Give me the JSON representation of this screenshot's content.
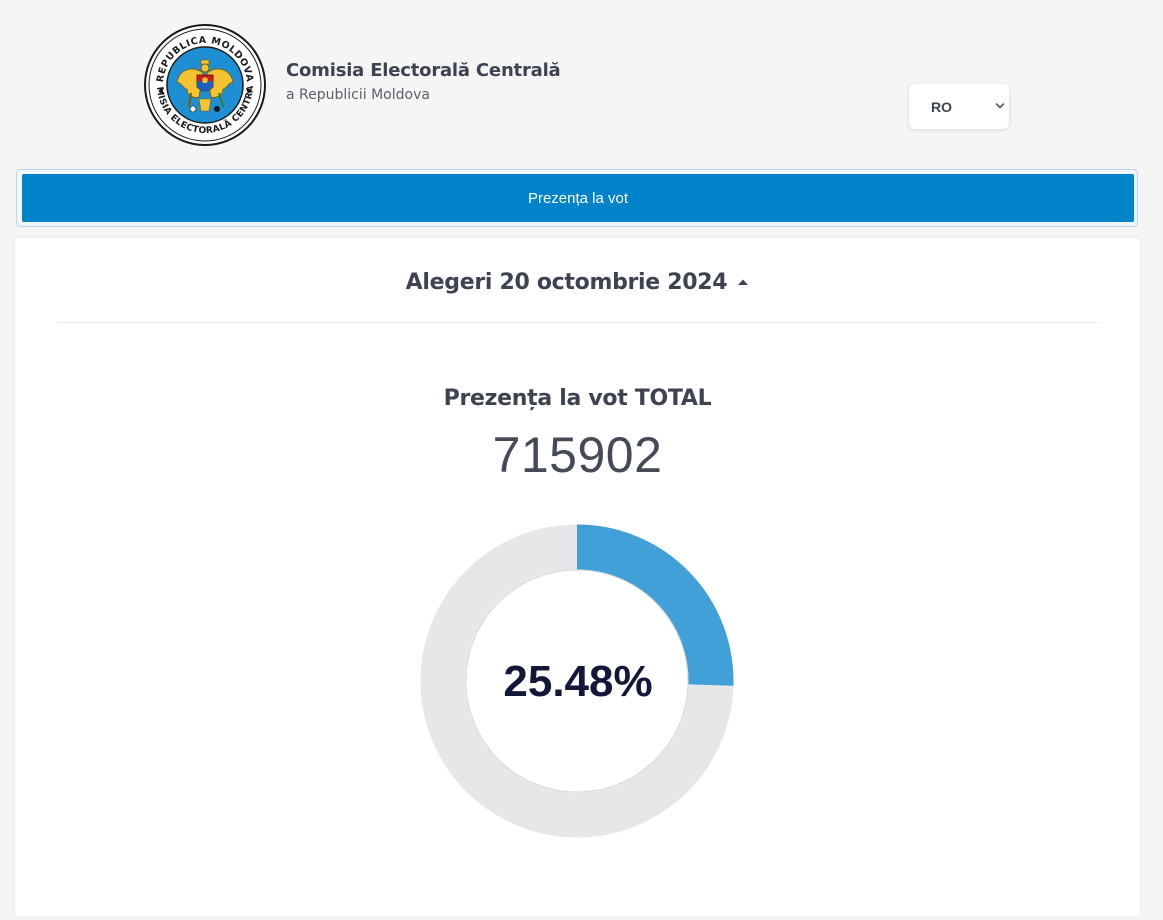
{
  "header": {
    "logo": {
      "icon": "cec-moldova-seal-icon",
      "ring_text_top": "REPUBLICA MOLDOVA",
      "ring_text_bottom": "COMISIA ELECTORALĂ CENTRALĂ"
    },
    "title": "Comisia Electorală Centrală",
    "subtitle": "a Republicii Moldova",
    "language": {
      "selected": "RO",
      "icon": "chevron-down-icon"
    }
  },
  "nav": {
    "active_label": "Prezența la vot"
  },
  "election": {
    "title": "Alegeri 20 octombrie 2024",
    "toggle_icon": "caret-up-icon"
  },
  "turnout": {
    "heading": "Prezența la vot TOTAL",
    "total": "715902",
    "percent_label": "25.48%",
    "percent_value": 25.48
  },
  "colors": {
    "nav_bg": "#0083c8",
    "donut_fill": "#42a0d8",
    "donut_track": "#e6e7e9",
    "percent_text": "#13183a"
  }
}
